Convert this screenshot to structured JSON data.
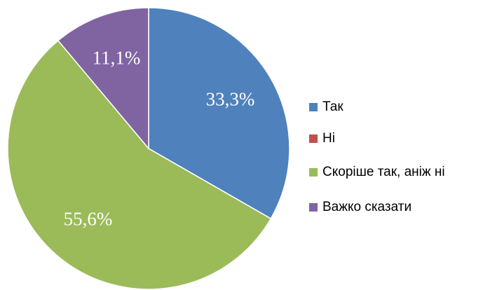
{
  "chart_data": {
    "type": "pie",
    "categories": [
      "Так",
      "Ні",
      "Скоріше так, аніж ні",
      "Важко сказати"
    ],
    "values": [
      33.3,
      0,
      55.6,
      11.1
    ],
    "value_labels": [
      "33,3%",
      null,
      "55,6%",
      "11,1%"
    ],
    "colors": [
      "#4f81bd",
      "#c0504d",
      "#9bbb59",
      "#8064a2"
    ],
    "legend": "right"
  }
}
